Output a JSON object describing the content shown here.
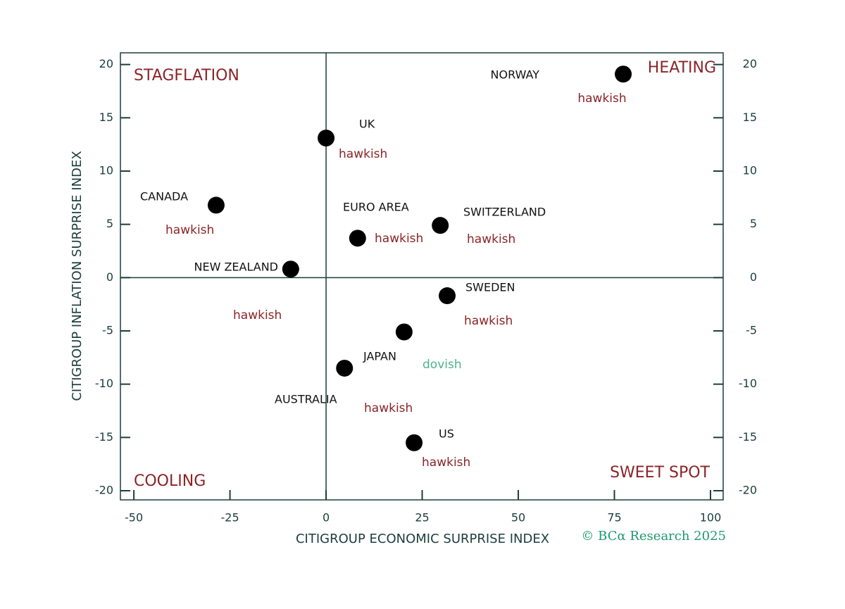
{
  "chart_data": {
    "type": "scatter",
    "xlabel": "CITIGROUP ECONOMIC SURPRISE INDEX",
    "ylabel": "CITIGROUP INFLATION SURPRISE INDEX",
    "labels": [
      "NORWAY",
      "UK",
      "CANADA",
      "EURO AREA",
      "SWITZERLAND",
      "NEW ZEALAND",
      "SWEDEN",
      "JAPAN",
      "AUSTRALIA",
      "US"
    ],
    "x": [
      77.3,
      0,
      -28.6,
      8.2,
      29.7,
      -9.2,
      31.5,
      20.3,
      4.8,
      22.9
    ],
    "values": [
      19.1,
      13.1,
      6.8,
      3.7,
      4.9,
      0.8,
      -1.7,
      -5.1,
      -8.5,
      -15.5
    ],
    "stances": [
      "hawkish",
      "hawkish",
      "hawkish",
      "hawkish",
      "hawkish",
      "hawkish",
      "hawkish",
      "dovish",
      "hawkish",
      "hawkish"
    ],
    "stance_colors": {
      "hawkish": "#8b2427",
      "dovish": "#4db38c"
    },
    "color": "#000000",
    "quadrants": [
      "STAGFLATION",
      "HEATING",
      "COOLING",
      "SWEET SPOT"
    ],
    "quadrant_color": "#8b2427",
    "source": "© BCα Research 2025",
    "xlim": [
      -53.5,
      103.3
    ],
    "ylim": [
      -20.86,
      21.1
    ],
    "xticks": [
      -50,
      -25,
      0,
      25,
      50,
      75,
      100
    ],
    "yticks": [
      -20,
      -15,
      -10,
      -5,
      0,
      5,
      10,
      15,
      20
    ]
  }
}
